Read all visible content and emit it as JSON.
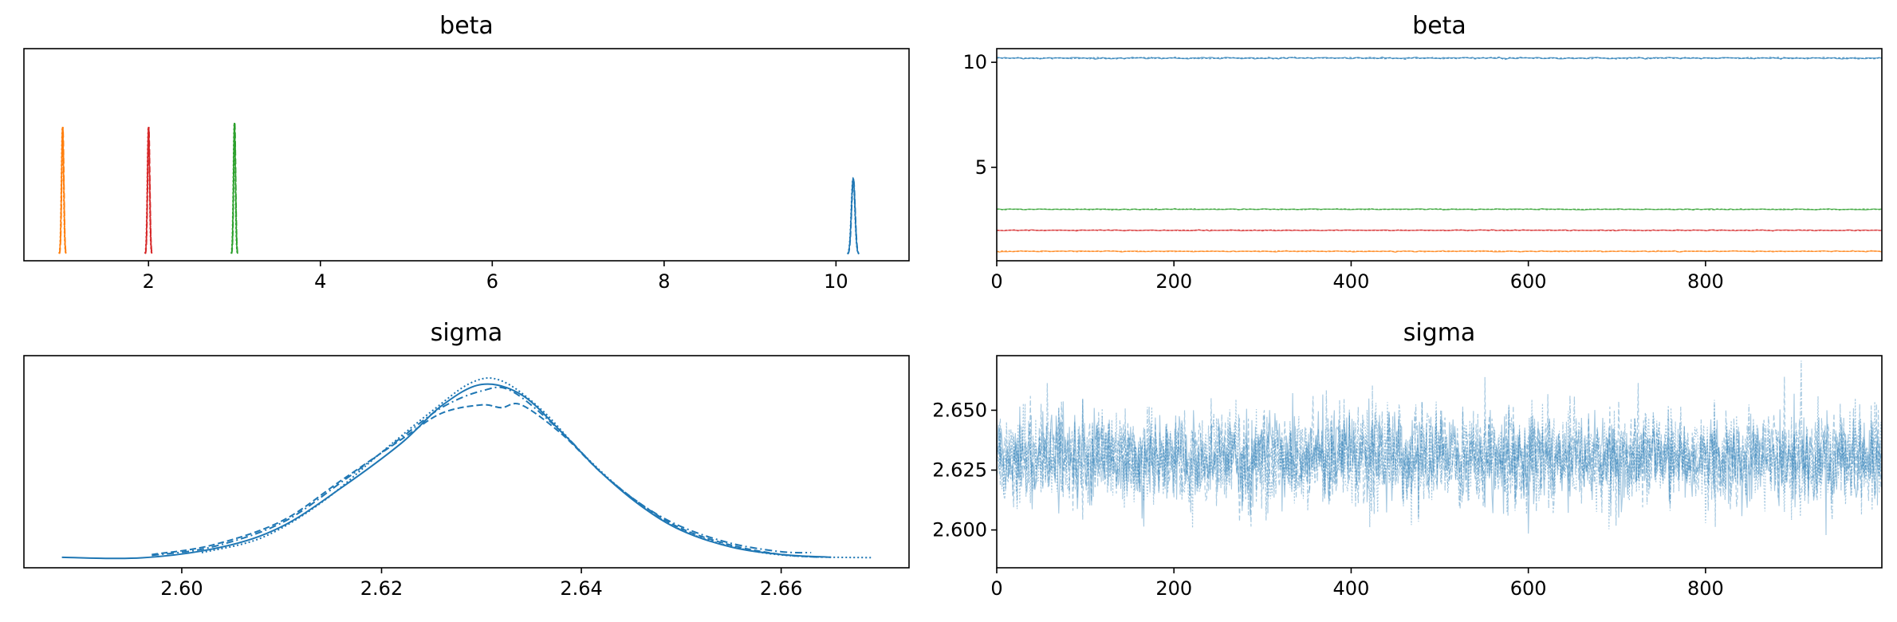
{
  "chart_data": [
    {
      "panel": "beta-density",
      "type": "line",
      "title": "beta",
      "xlim": [
        0.55,
        10.85
      ],
      "xticks": [
        "2",
        "4",
        "6",
        "8",
        "10"
      ],
      "yticks": [],
      "series": [
        {
          "color": "#ff7f0e",
          "mean": 1.0,
          "sd": 0.0124,
          "peak": 0.94
        },
        {
          "color": "#d62728",
          "mean": 2.0,
          "sd": 0.0124,
          "peak": 0.94
        },
        {
          "color": "#2ca02c",
          "mean": 3.0,
          "sd": 0.0115,
          "peak": 0.97
        },
        {
          "color": "#1f77b4",
          "mean": 10.2,
          "sd": 0.0205,
          "peak": 0.56
        }
      ]
    },
    {
      "panel": "beta-trace",
      "type": "line",
      "title": "beta",
      "xlim": [
        0,
        999
      ],
      "ylim": [
        0.55,
        10.65
      ],
      "xticks": [
        "0",
        "200",
        "400",
        "600",
        "800"
      ],
      "yticks": [
        "5",
        "10"
      ],
      "series": [
        {
          "color": "#1f77b4",
          "level": 10.2,
          "noise": 0.02
        },
        {
          "color": "#2ca02c",
          "level": 3.0,
          "noise": 0.012
        },
        {
          "color": "#d62728",
          "level": 2.0,
          "noise": 0.012
        },
        {
          "color": "#ff7f0e",
          "level": 1.0,
          "noise": 0.012
        }
      ]
    },
    {
      "panel": "sigma-density",
      "type": "line",
      "title": "sigma",
      "xlim": [
        2.5842,
        2.6728
      ],
      "xticks": [
        "2.60",
        "2.62",
        "2.64",
        "2.66"
      ],
      "yticks": [],
      "color": "#1f77b4",
      "series": [
        {
          "style": "solid",
          "points": [
            [
              2.588,
              0.005
            ],
            [
              2.596,
              0.002
            ],
            [
              2.604,
              0.06
            ],
            [
              2.61,
              0.17
            ],
            [
              2.616,
              0.38
            ],
            [
              2.622,
              0.62
            ],
            [
              2.626,
              0.82
            ],
            [
              2.63,
              0.935
            ],
            [
              2.634,
              0.88
            ],
            [
              2.638,
              0.68
            ],
            [
              2.642,
              0.46
            ],
            [
              2.646,
              0.28
            ],
            [
              2.65,
              0.15
            ],
            [
              2.655,
              0.06
            ],
            [
              2.66,
              0.02
            ],
            [
              2.665,
              0.005
            ]
          ]
        },
        {
          "style": "dashed",
          "points": [
            [
              2.597,
              0.02
            ],
            [
              2.603,
              0.07
            ],
            [
              2.61,
              0.2
            ],
            [
              2.616,
              0.42
            ],
            [
              2.622,
              0.64
            ],
            [
              2.626,
              0.78
            ],
            [
              2.63,
              0.825
            ],
            [
              2.632,
              0.81
            ],
            [
              2.634,
              0.825
            ],
            [
              2.638,
              0.67
            ],
            [
              2.642,
              0.46
            ],
            [
              2.646,
              0.29
            ],
            [
              2.65,
              0.16
            ],
            [
              2.655,
              0.07
            ],
            [
              2.66,
              0.02
            ],
            [
              2.664,
              0.005
            ]
          ]
        },
        {
          "style": "dashdot",
          "points": [
            [
              2.597,
              0.015
            ],
            [
              2.603,
              0.06
            ],
            [
              2.61,
              0.19
            ],
            [
              2.616,
              0.41
            ],
            [
              2.622,
              0.65
            ],
            [
              2.626,
              0.81
            ],
            [
              2.63,
              0.9
            ],
            [
              2.633,
              0.9
            ],
            [
              2.638,
              0.68
            ],
            [
              2.642,
              0.46
            ],
            [
              2.646,
              0.29
            ],
            [
              2.65,
              0.17
            ],
            [
              2.655,
              0.08
            ],
            [
              2.66,
              0.035
            ],
            [
              2.663,
              0.03
            ]
          ]
        },
        {
          "style": "dotted",
          "points": [
            [
              2.602,
              0.03
            ],
            [
              2.608,
              0.11
            ],
            [
              2.614,
              0.3
            ],
            [
              2.62,
              0.57
            ],
            [
              2.625,
              0.79
            ],
            [
              2.629,
              0.945
            ],
            [
              2.632,
              0.955
            ],
            [
              2.636,
              0.8
            ],
            [
              2.64,
              0.57
            ],
            [
              2.644,
              0.37
            ],
            [
              2.648,
              0.21
            ],
            [
              2.652,
              0.11
            ],
            [
              2.657,
              0.04
            ],
            [
              2.662,
              0.01
            ],
            [
              2.669,
              0.003
            ]
          ]
        }
      ]
    },
    {
      "panel": "sigma-trace",
      "type": "line",
      "title": "sigma",
      "xlim": [
        0,
        999
      ],
      "ylim": [
        2.5842,
        2.6728
      ],
      "xticks": [
        "0",
        "200",
        "400",
        "600",
        "800"
      ],
      "yticks": [
        "2.600",
        "2.625",
        "2.650"
      ],
      "color": "#1f77b4",
      "mean": 2.63,
      "sd": 0.0095,
      "chains": 4
    }
  ]
}
